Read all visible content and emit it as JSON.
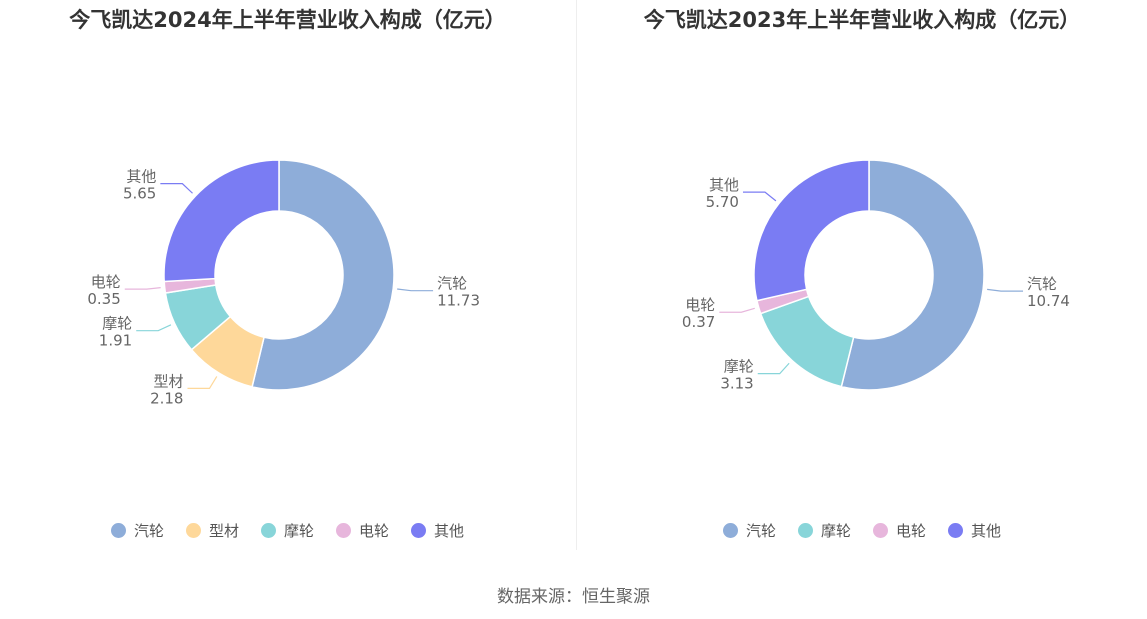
{
  "chart_data": [
    {
      "type": "pie",
      "title": "今飞凯达2024年上半年营业收入构成（亿元）",
      "categories": [
        "汽轮",
        "型材",
        "摩轮",
        "电轮",
        "其他"
      ],
      "values": [
        11.73,
        2.18,
        1.91,
        0.35,
        5.65
      ],
      "value_labels": [
        "11.73",
        "2.18",
        "1.91",
        "0.35",
        "5.65"
      ],
      "colors": [
        "#8eadd9",
        "#fed89a",
        "#88d5d9",
        "#e7b6dc",
        "#7a7cf3"
      ],
      "legend_position": "bottom"
    },
    {
      "type": "pie",
      "title": "今飞凯达2023年上半年营业收入构成（亿元）",
      "categories": [
        "汽轮",
        "摩轮",
        "电轮",
        "其他"
      ],
      "values": [
        10.74,
        3.13,
        0.37,
        5.7
      ],
      "value_labels": [
        "10.74",
        "3.13",
        "0.37",
        "5.70"
      ],
      "colors": [
        "#8eadd9",
        "#88d5d9",
        "#e7b6dc",
        "#7a7cf3"
      ],
      "legend_position": "bottom"
    }
  ],
  "source": "数据来源：恒生聚源"
}
